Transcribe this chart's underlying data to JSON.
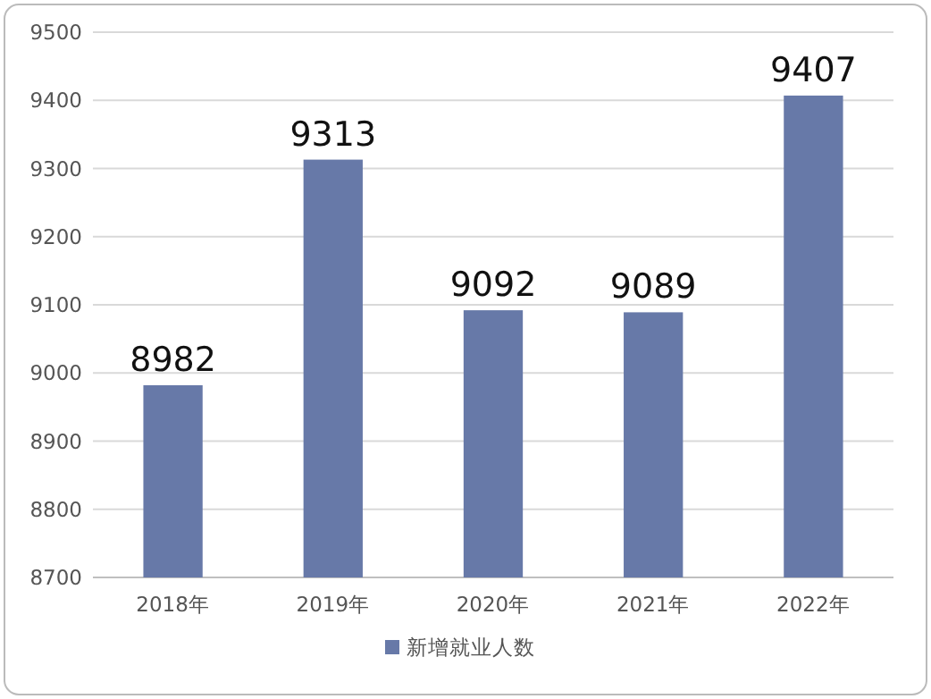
{
  "chart_data": {
    "type": "bar",
    "categories": [
      "2018年",
      "2019年",
      "2020年",
      "2021年",
      "2022年"
    ],
    "series": [
      {
        "name": "新增就业人数",
        "color": "#6779a8",
        "values": [
          8982,
          9313,
          9092,
          9089,
          9407
        ]
      }
    ],
    "ylim": [
      8700,
      9500
    ],
    "yticks": [
      8700,
      8800,
      8900,
      9000,
      9100,
      9200,
      9300,
      9400,
      9500
    ],
    "grid": "y",
    "legend": "bottom",
    "data_labels": true
  }
}
